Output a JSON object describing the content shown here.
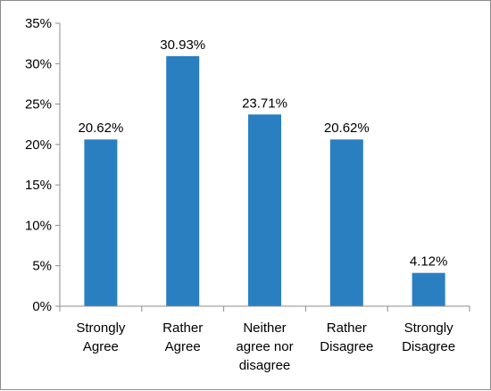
{
  "chart_data": {
    "type": "bar",
    "title": "",
    "xlabel": "",
    "ylabel": "",
    "categories": [
      [
        "Strongly",
        "Agree"
      ],
      [
        "Rather",
        "Agree"
      ],
      [
        "Neither",
        "agree nor",
        "disagree"
      ],
      [
        "Rather",
        "Disagree"
      ],
      [
        "Strongly",
        "Disagree"
      ]
    ],
    "values": [
      20.62,
      30.93,
      23.71,
      20.62,
      4.12
    ],
    "data_labels": [
      "20.62%",
      "30.93%",
      "23.71%",
      "20.62%",
      "4.12%"
    ],
    "ylim": [
      0,
      35
    ],
    "yticks": [
      0,
      5,
      10,
      15,
      20,
      25,
      30,
      35
    ],
    "ytick_labels": [
      "0%",
      "5%",
      "10%",
      "15%",
      "20%",
      "25%",
      "30%",
      "35%"
    ],
    "bar_color": "#2a7fc1",
    "legend": "none",
    "grid": false
  }
}
